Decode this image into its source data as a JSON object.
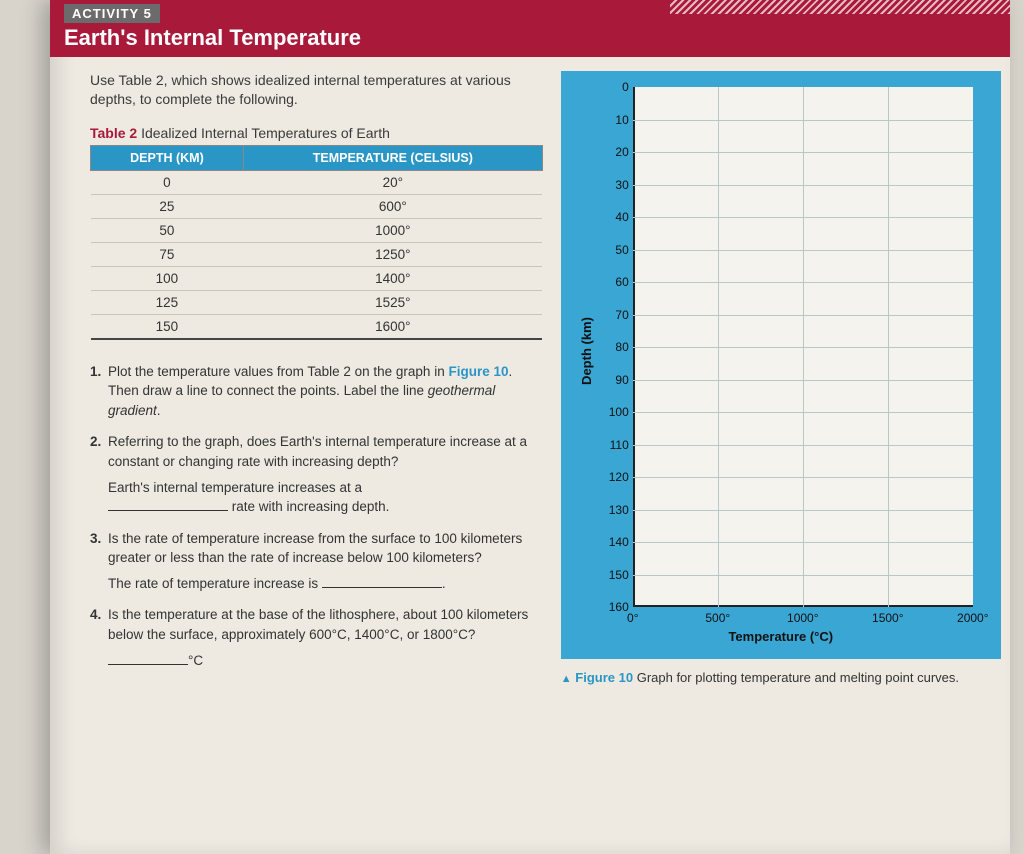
{
  "header": {
    "activity_label": "ACTIVITY 5",
    "title": "Earth's Internal Temperature"
  },
  "intro": "Use Table 2, which shows idealized internal temperatures at various depths, to complete the following.",
  "table": {
    "caption_prefix": "Table 2",
    "caption_rest": " Idealized Internal Temperatures of Earth",
    "columns": [
      "DEPTH (KM)",
      "TEMPERATURE (CELSIUS)"
    ],
    "rows": [
      [
        "0",
        "20°"
      ],
      [
        "25",
        "600°"
      ],
      [
        "50",
        "1000°"
      ],
      [
        "75",
        "1250°"
      ],
      [
        "100",
        "1400°"
      ],
      [
        "125",
        "1525°"
      ],
      [
        "150",
        "1600°"
      ]
    ]
  },
  "questions": {
    "q1_a": "Plot the temperature values from Table 2 on the graph in ",
    "q1_fig": "Figure 10",
    "q1_b": ". Then draw a line to connect the points. Label the line ",
    "q1_ital": "geothermal gradient",
    "q1_c": ".",
    "q2": "Referring to the graph, does Earth's internal temperature increase at a constant or changing rate with increasing depth?",
    "q2_ans_a": "Earth's internal temperature increases at a ",
    "q2_ans_b": " rate with increasing depth.",
    "q3": "Is the rate of temperature increase from the surface to 100 kilometers greater or less than the rate of increase below 100 kilometers?",
    "q3_ans_a": "The rate of temperature increase is ",
    "q3_ans_b": ".",
    "q4": "Is the temperature at the base of the lithosphere, about 100 kilometers below the surface, approximately 600°C, 1400°C, or 1800°C?",
    "q4_ans": "°C"
  },
  "chart": {
    "type": "empty-grid",
    "ylabel": "Depth (km)",
    "xlabel": "Temperature (°C)",
    "ylim": [
      0,
      160
    ],
    "ytick_step": 10,
    "yticks": [
      "0",
      "10",
      "20",
      "30",
      "40",
      "50",
      "60",
      "70",
      "80",
      "90",
      "100",
      "110",
      "120",
      "130",
      "140",
      "150",
      "160"
    ],
    "xlim": [
      0,
      2000
    ],
    "xtick_step": 500,
    "xticks": [
      "0°",
      "500°",
      "1000°",
      "1500°",
      "2000°"
    ],
    "frame_color": "#3aa6d4",
    "plot_bg": "#f5f3ee",
    "grid_color": "#b9c7c9",
    "tick_fontsize": 12,
    "label_fontsize": 13
  },
  "figure_caption": {
    "tri": "▲",
    "label": "Figure 10",
    "text": " Graph for plotting temperature and melting point curves."
  }
}
